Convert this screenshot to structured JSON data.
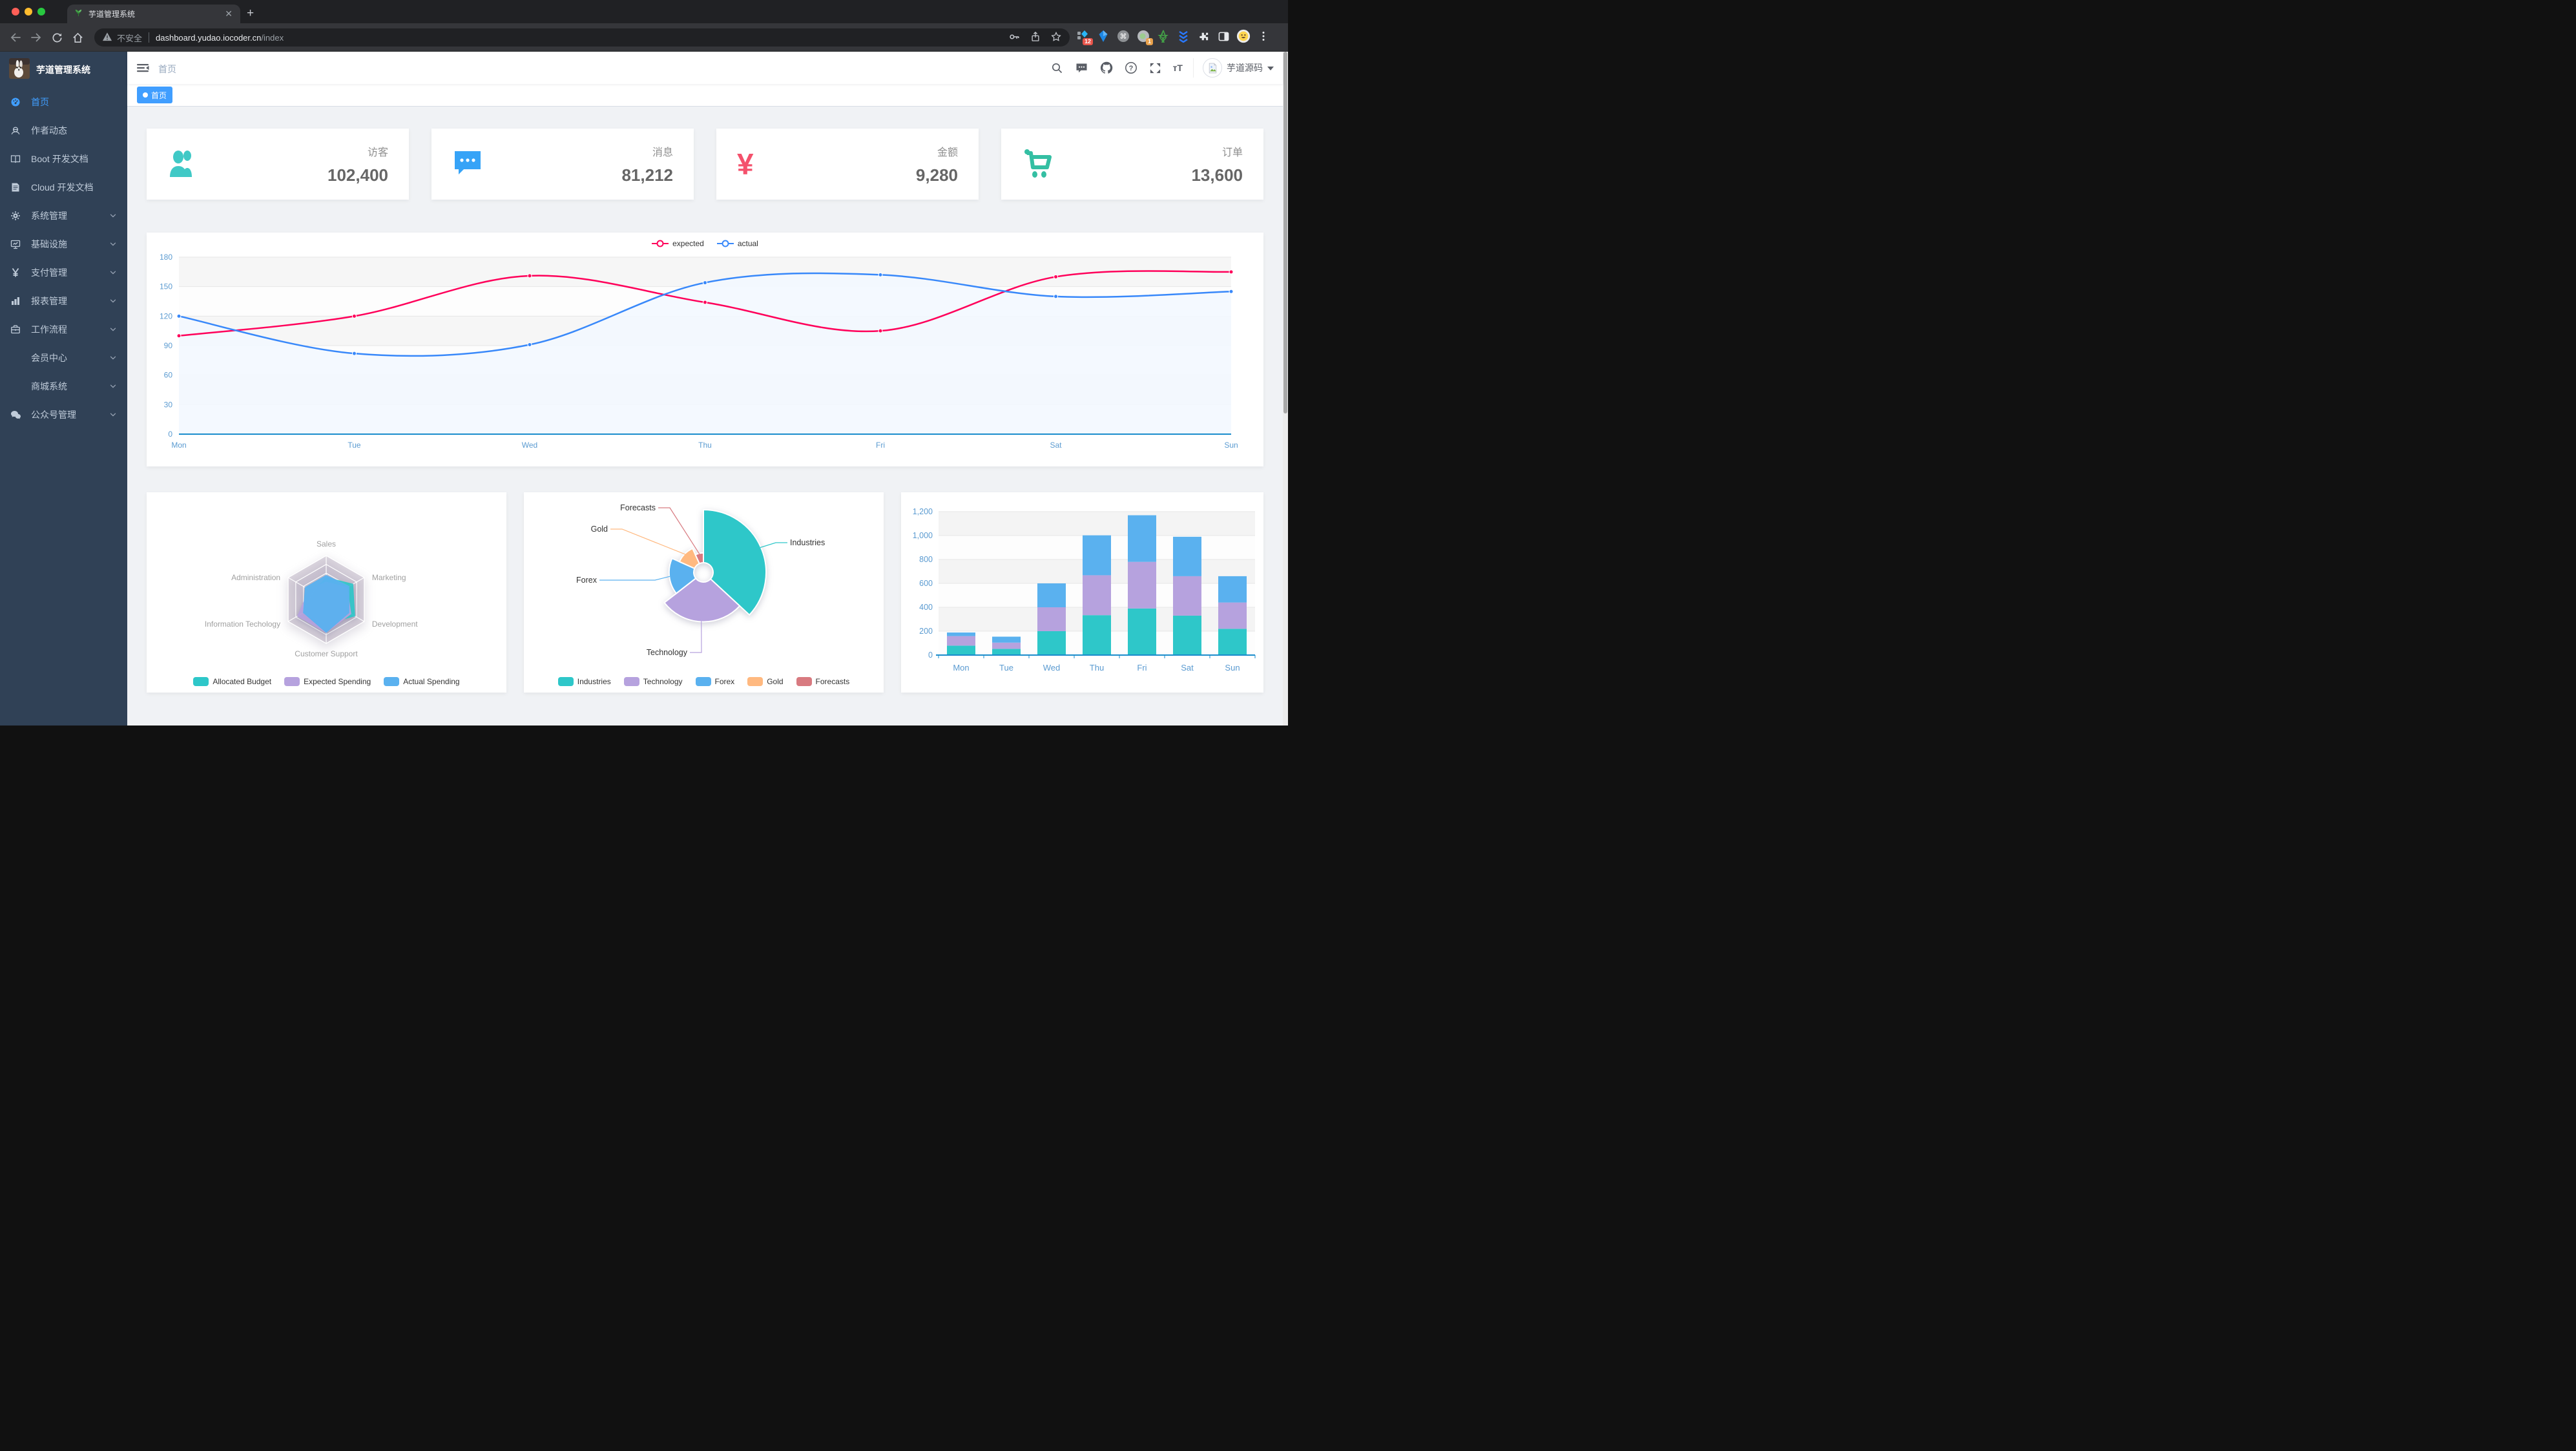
{
  "accent_color": "#409eff",
  "browser": {
    "tab_title": "芋道管理系统",
    "close_tab_glyph": "✕",
    "new_tab_glyph": "+",
    "security_label": "不安全",
    "url_host": "dashboard.yudao.iocoder.cn",
    "url_path": "/index",
    "extension_badge_1": "12",
    "extension_badge_2": "1"
  },
  "sidebar": {
    "logo_title": "芋道管理系统",
    "items": [
      {
        "key": "home",
        "label": "首页",
        "icon": "dashboard-icon",
        "active": true,
        "arrow": false
      },
      {
        "key": "author",
        "label": "作者动态",
        "icon": "people-icon",
        "active": false,
        "arrow": false
      },
      {
        "key": "boot-docs",
        "label": "Boot 开发文档",
        "icon": "book-icon",
        "active": false,
        "arrow": false
      },
      {
        "key": "cloud-docs",
        "label": "Cloud 开发文档",
        "icon": "document-icon",
        "active": false,
        "arrow": false
      },
      {
        "key": "system",
        "label": "系统管理",
        "icon": "gear-icon",
        "active": false,
        "arrow": true
      },
      {
        "key": "infra",
        "label": "基础设施",
        "icon": "monitor-icon",
        "active": false,
        "arrow": true
      },
      {
        "key": "payment",
        "label": "支付管理",
        "icon": "yen-icon",
        "active": false,
        "arrow": true
      },
      {
        "key": "report",
        "label": "报表管理",
        "icon": "barchart-icon",
        "active": false,
        "arrow": true
      },
      {
        "key": "workflow",
        "label": "工作流程",
        "icon": "briefcase-icon",
        "active": false,
        "arrow": true
      },
      {
        "key": "member",
        "label": "会员中心",
        "icon": null,
        "active": false,
        "arrow": true
      },
      {
        "key": "mall",
        "label": "商城系统",
        "icon": null,
        "active": false,
        "arrow": true
      },
      {
        "key": "mp",
        "label": "公众号管理",
        "icon": "wechat-icon",
        "active": false,
        "arrow": true
      }
    ]
  },
  "navbar": {
    "breadcrumb": "首页",
    "username": "芋道源码"
  },
  "tags": {
    "active": "首页"
  },
  "stat_cards": [
    {
      "key": "visitors",
      "label": "访客",
      "value": "102,400",
      "icon": "people-icon",
      "color": "#40c9c6"
    },
    {
      "key": "messages",
      "label": "消息",
      "value": "81,212",
      "icon": "message-icon",
      "color": "#36a3f7"
    },
    {
      "key": "amount",
      "label": "金额",
      "value": "9,280",
      "icon": "money-icon",
      "color": "#f4516c"
    },
    {
      "key": "orders",
      "label": "订单",
      "value": "13,600",
      "icon": "cart-icon",
      "color": "#34bfa3"
    }
  ],
  "chart_data": [
    {
      "id": "weekly-line",
      "type": "line",
      "categories": [
        "Mon",
        "Tue",
        "Wed",
        "Thu",
        "Fri",
        "Sat",
        "Sun"
      ],
      "series": [
        {
          "name": "expected",
          "color": "#FF005A",
          "values": [
            100,
            120,
            161,
            134,
            105,
            160,
            165
          ]
        },
        {
          "name": "actual",
          "color": "#3888fa",
          "area_color": "#f3f8ff",
          "values": [
            120,
            82,
            91,
            154,
            162,
            140,
            145
          ]
        }
      ],
      "ylim": [
        0,
        180
      ],
      "ytick_step": 30,
      "legend_position": "top",
      "grid": true
    },
    {
      "id": "budget-radar",
      "type": "radar",
      "axes": [
        {
          "name": "Sales",
          "max": 10000
        },
        {
          "name": "Marketing",
          "max": 20000
        },
        {
          "name": "Development",
          "max": 20000
        },
        {
          "name": "Customer Support",
          "max": 20000
        },
        {
          "name": "Information Techology",
          "max": 20000
        },
        {
          "name": "Administration",
          "max": 20000
        }
      ],
      "series": [
        {
          "name": "Allocated Budget",
          "color": "#2ec7c9",
          "values": [
            5000,
            14000,
            15000,
            11000,
            12000,
            7000
          ]
        },
        {
          "name": "Expected Spending",
          "color": "#b6a2de",
          "values": [
            4000,
            11000,
            13000,
            15000,
            15000,
            9000
          ]
        },
        {
          "name": "Actual Spending",
          "color": "#5ab1ef",
          "values": [
            5500,
            12000,
            12000,
            15000,
            12000,
            11000
          ]
        }
      ],
      "legend_position": "bottom"
    },
    {
      "id": "category-pie",
      "type": "pie",
      "rose_type": "radius",
      "items": [
        {
          "name": "Industries",
          "value": 320,
          "color": "#2ec7c9"
        },
        {
          "name": "Technology",
          "value": 240,
          "color": "#b6a2de"
        },
        {
          "name": "Forex",
          "value": 149,
          "color": "#5ab1ef"
        },
        {
          "name": "Gold",
          "value": 100,
          "color": "#ffb980"
        },
        {
          "name": "Forecasts",
          "value": 59,
          "color": "#d87a80"
        }
      ],
      "legend_position": "bottom"
    },
    {
      "id": "weekly-bar",
      "type": "bar",
      "stacked": true,
      "categories": [
        "Mon",
        "Tue",
        "Wed",
        "Thu",
        "Fri",
        "Sat",
        "Sun"
      ],
      "series": [
        {
          "color": "#2ec7c9",
          "values": [
            79,
            52,
            200,
            334,
            390,
            330,
            220
          ]
        },
        {
          "color": "#b6a2de",
          "values": [
            80,
            52,
            200,
            334,
            390,
            330,
            220
          ]
        },
        {
          "color": "#5ab1ef",
          "values": [
            30,
            50,
            200,
            334,
            390,
            330,
            220
          ]
        }
      ],
      "ylim": [
        0,
        1200
      ],
      "ytick_step": 200
    }
  ]
}
